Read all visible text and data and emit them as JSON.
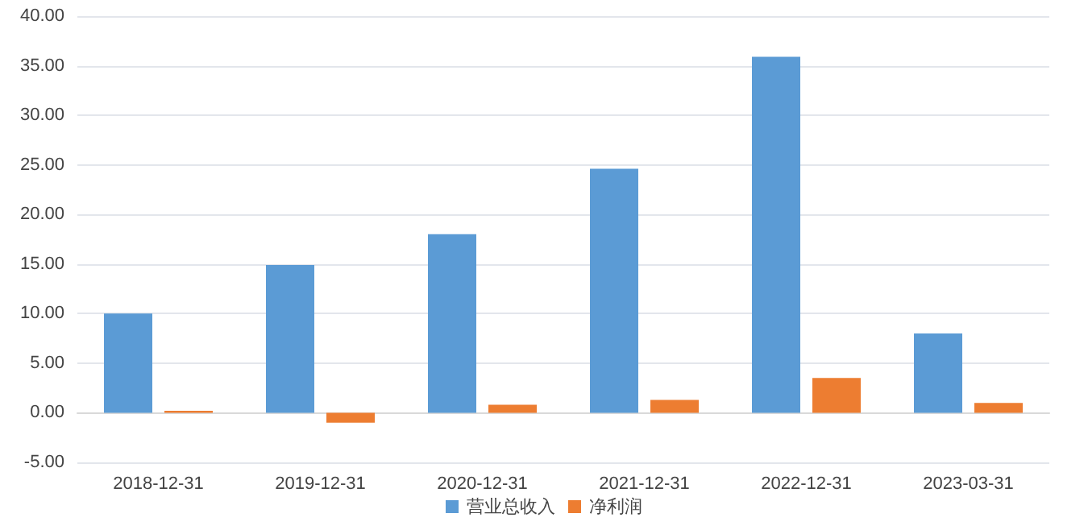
{
  "chart_data": {
    "type": "bar",
    "categories": [
      "2018-12-31",
      "2019-12-31",
      "2020-12-31",
      "2021-12-31",
      "2022-12-31",
      "2023-03-31"
    ],
    "series": [
      {
        "name": "营业总收入",
        "color": "#5b9bd5",
        "values": [
          10.0,
          14.9,
          18.0,
          24.6,
          35.9,
          8.0
        ]
      },
      {
        "name": "净利润",
        "color": "#ed7d31",
        "values": [
          0.2,
          -1.0,
          0.8,
          1.3,
          3.5,
          1.0
        ]
      }
    ],
    "ylim": [
      -5,
      40
    ],
    "yticks": [
      {
        "value": -5,
        "label": "-5.00"
      },
      {
        "value": 0,
        "label": "0.00"
      },
      {
        "value": 5,
        "label": "5.00"
      },
      {
        "value": 10,
        "label": "10.00"
      },
      {
        "value": 15,
        "label": "15.00"
      },
      {
        "value": 20,
        "label": "20.00"
      },
      {
        "value": 25,
        "label": "25.00"
      },
      {
        "value": 30,
        "label": "30.00"
      },
      {
        "value": 35,
        "label": "35.00"
      },
      {
        "value": 40,
        "label": "40.00"
      }
    ],
    "grid": "y",
    "legend": "bottom"
  }
}
